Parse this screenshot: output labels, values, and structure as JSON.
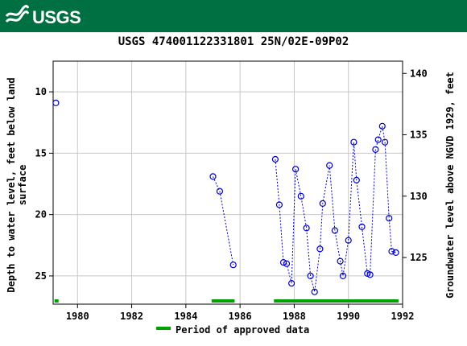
{
  "header": {
    "logo_text": "USGS",
    "brand_color": "#006f41"
  },
  "chart_data": {
    "type": "scatter",
    "title": "USGS 474001122331801 25N/02E-09P02",
    "ylabel_left": "Depth to water level, feet below land surface",
    "ylabel_left_lines": [
      "Depth to water level, feet below land",
      "surface"
    ],
    "ylabel_right": "Groundwater level above NGVD 1929, feet",
    "xlim": [
      1979.1,
      1992.0
    ],
    "ylim_left": [
      27.3,
      7.5
    ],
    "ylim_right": [
      121.2,
      141.0
    ],
    "xticks": [
      1980,
      1982,
      1984,
      1986,
      1988,
      1990,
      1992
    ],
    "yticks_left": [
      10,
      15,
      20,
      25
    ],
    "yticks_right": [
      125,
      130,
      135,
      140
    ],
    "grid": true,
    "marker_color": "#0000cc",
    "series": [
      {
        "values": [
          [
            1979.2,
            10.9
          ]
        ]
      },
      {
        "values": [
          [
            1985.0,
            16.9
          ],
          [
            1985.25,
            18.1
          ],
          [
            1985.75,
            24.1
          ]
        ]
      },
      {
        "values": [
          [
            1987.3,
            15.5
          ],
          [
            1987.45,
            19.2
          ],
          [
            1987.6,
            23.9
          ],
          [
            1987.72,
            24.0
          ],
          [
            1987.9,
            25.6
          ],
          [
            1988.05,
            16.3
          ],
          [
            1988.25,
            18.5
          ],
          [
            1988.45,
            21.1
          ],
          [
            1988.6,
            25.0
          ],
          [
            1988.75,
            26.3
          ],
          [
            1988.95,
            22.8
          ],
          [
            1989.05,
            19.1
          ],
          [
            1989.3,
            16.0
          ],
          [
            1989.5,
            21.3
          ],
          [
            1989.7,
            23.8
          ],
          [
            1989.8,
            25.0
          ],
          [
            1990.0,
            22.1
          ],
          [
            1990.2,
            14.1
          ],
          [
            1990.3,
            17.2
          ],
          [
            1990.5,
            21.0
          ],
          [
            1990.7,
            24.8
          ],
          [
            1990.8,
            24.9
          ],
          [
            1991.0,
            14.7
          ],
          [
            1991.1,
            13.9
          ],
          [
            1991.25,
            12.8
          ],
          [
            1991.35,
            14.1
          ],
          [
            1991.5,
            20.3
          ],
          [
            1991.6,
            23.0
          ],
          [
            1991.75,
            23.1
          ]
        ]
      }
    ],
    "approved_periods": [
      [
        1979.15,
        1979.3
      ],
      [
        1984.95,
        1985.8
      ],
      [
        1987.25,
        1991.85
      ]
    ],
    "approved_color": "#00a000",
    "legend": {
      "label": "Period of approved data",
      "placement": "bottom-center"
    }
  }
}
